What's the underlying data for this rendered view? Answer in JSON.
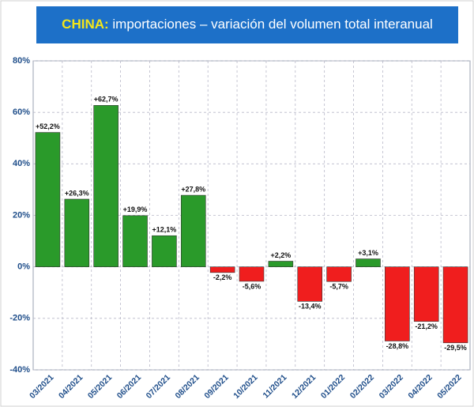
{
  "chart_data": {
    "type": "bar",
    "title_highlight": "CHINA:",
    "title": "importaciones – variación del volumen total interanual",
    "categories": [
      "03/2021",
      "04/2021",
      "05/2021",
      "06/2021",
      "07/2021",
      "08/2021",
      "09/2021",
      "10/2021",
      "11/2021",
      "12/2021",
      "01/2022",
      "02/2022",
      "03/2022",
      "04/2022",
      "05/2022"
    ],
    "values": [
      52.2,
      26.3,
      62.7,
      19.9,
      12.1,
      27.8,
      -2.2,
      -5.6,
      2.2,
      -13.4,
      -5.7,
      3.1,
      -28.8,
      -21.2,
      -29.5
    ],
    "value_labels": [
      "+52,2%",
      "+26,3%",
      "+62,7%",
      "+19,9%",
      "+12,1%",
      "+27,8%",
      "-2,2%",
      "-5,6%",
      "+2,2%",
      "-13,4%",
      "-5,7%",
      "+3,1%",
      "-28,8%",
      "-21,2%",
      "-29,5%"
    ],
    "positive_color": "#2a9a2a",
    "negative_color": "#f01e1e",
    "ylim": [
      -40,
      80
    ],
    "yticks": [
      {
        "value": -40,
        "label": "-40%"
      },
      {
        "value": -20,
        "label": "-20%"
      },
      {
        "value": 0,
        "label": "0%"
      },
      {
        "value": 20,
        "label": "20%"
      },
      {
        "value": 40,
        "label": "40%"
      },
      {
        "value": 60,
        "label": "60%"
      },
      {
        "value": 80,
        "label": "80%"
      }
    ],
    "grid": true
  }
}
